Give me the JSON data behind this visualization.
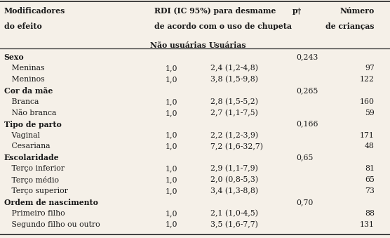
{
  "rows": [
    {
      "label": "Sexo",
      "bold": true,
      "nao": "",
      "usu": "",
      "p": "0,243",
      "n": ""
    },
    {
      "label": "   Meninas",
      "bold": false,
      "nao": "1,0",
      "usu": "2,4 (1,2-4,8)",
      "p": "",
      "n": "97"
    },
    {
      "label": "   Meninos",
      "bold": false,
      "nao": "1,0",
      "usu": "3,8 (1,5-9,8)",
      "p": "",
      "n": "122"
    },
    {
      "label": "Cor da mãe",
      "bold": true,
      "nao": "",
      "usu": "",
      "p": "0,265",
      "n": ""
    },
    {
      "label": "   Branca",
      "bold": false,
      "nao": "1,0",
      "usu": "2,8 (1,5-5,2)",
      "p": "",
      "n": "160"
    },
    {
      "label": "   Não branca",
      "bold": false,
      "nao": "1,0",
      "usu": "2,7 (1,1-7,5)",
      "p": "",
      "n": "59"
    },
    {
      "label": "Tipo de parto",
      "bold": true,
      "nao": "",
      "usu": "",
      "p": "0,166",
      "n": ""
    },
    {
      "label": "   Vaginal",
      "bold": false,
      "nao": "1,0",
      "usu": "2,2 (1,2-3,9)",
      "p": "",
      "n": "171"
    },
    {
      "label": "   Cesariana",
      "bold": false,
      "nao": "1,0",
      "usu": "7,2 (1,6-32,7)",
      "p": "",
      "n": "48"
    },
    {
      "label": "Escolaridade",
      "bold": true,
      "nao": "",
      "usu": "",
      "p": "0,65",
      "n": ""
    },
    {
      "label": "   Terço inferior",
      "bold": false,
      "nao": "1,0",
      "usu": "2,9 (1,1-7,9)",
      "p": "",
      "n": "81"
    },
    {
      "label": "   Terço médio",
      "bold": false,
      "nao": "1,0",
      "usu": "2,0 (0,8-5,3)",
      "p": "",
      "n": "65"
    },
    {
      "label": "   Terço superior",
      "bold": false,
      "nao": "1,0",
      "usu": "3,4 (1,3-8,8)",
      "p": "",
      "n": "73"
    },
    {
      "label": "Ordem de nascimento",
      "bold": true,
      "nao": "",
      "usu": "",
      "p": "0,70",
      "n": ""
    },
    {
      "label": "   Primeiro filho",
      "bold": false,
      "nao": "1,0",
      "usu": "2,1 (1,0-4,5)",
      "p": "",
      "n": "88"
    },
    {
      "label": "   Segundo filho ou outro",
      "bold": false,
      "nao": "1,0",
      "usu": "3,5 (1,6-7,7)",
      "p": "",
      "n": "131"
    }
  ],
  "col_x": {
    "label": 0.01,
    "nao": 0.385,
    "usu": 0.535,
    "p": 0.745,
    "n": 0.96
  },
  "bg_color": "#f5f0e8",
  "text_color": "#1a1a1a",
  "font_size": 7.8,
  "header_font_size": 7.8,
  "line_color": "#333333"
}
